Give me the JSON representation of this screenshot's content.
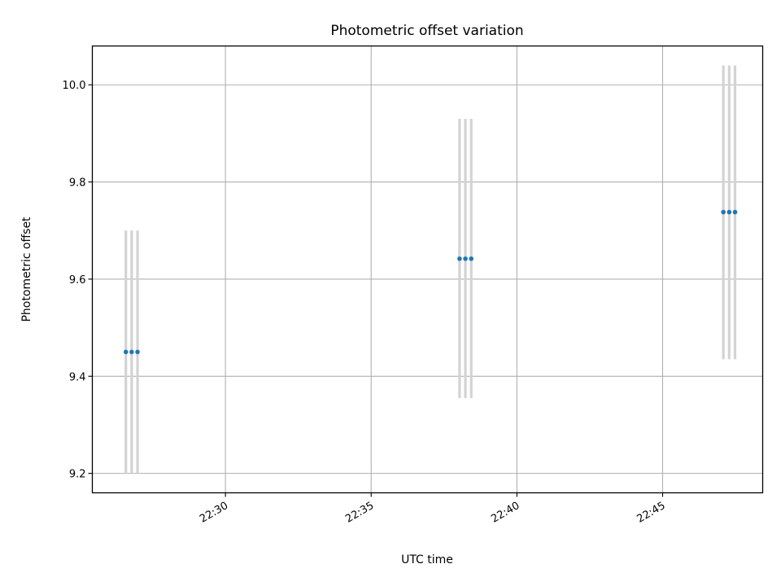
{
  "chart_data": {
    "type": "scatter",
    "title": "Photometric offset variation",
    "xlabel": "UTC time",
    "ylabel": "Photometric offset",
    "xlim": [
      "22:25:26",
      "22:48:26"
    ],
    "ylim": [
      9.16,
      10.08
    ],
    "xticks": [
      "22:30",
      "22:35",
      "22:40",
      "22:45"
    ],
    "yticks": [
      "9.2",
      "9.4",
      "9.6",
      "9.8",
      "10.0"
    ],
    "grid": true,
    "legend": "none",
    "series": [
      {
        "x": [
          "22:26:35",
          "22:26:47",
          "22:26:59",
          "22:38:02",
          "22:38:14",
          "22:38:26",
          "22:47:05",
          "22:47:17",
          "22:47:29"
        ],
        "y": [
          9.45,
          9.45,
          9.45,
          9.642,
          9.642,
          9.642,
          9.738,
          9.738,
          9.738
        ],
        "error_low": [
          9.2,
          9.2,
          9.2,
          9.355,
          9.355,
          9.355,
          9.435,
          9.435,
          9.435
        ],
        "error_high": [
          9.7,
          9.7,
          9.7,
          9.93,
          9.93,
          9.93,
          10.04,
          10.04,
          10.04
        ]
      }
    ],
    "colors": {
      "points": "#1f77b4",
      "errorbars": "#d3d3d3",
      "grid": "#b0b0b0"
    }
  }
}
